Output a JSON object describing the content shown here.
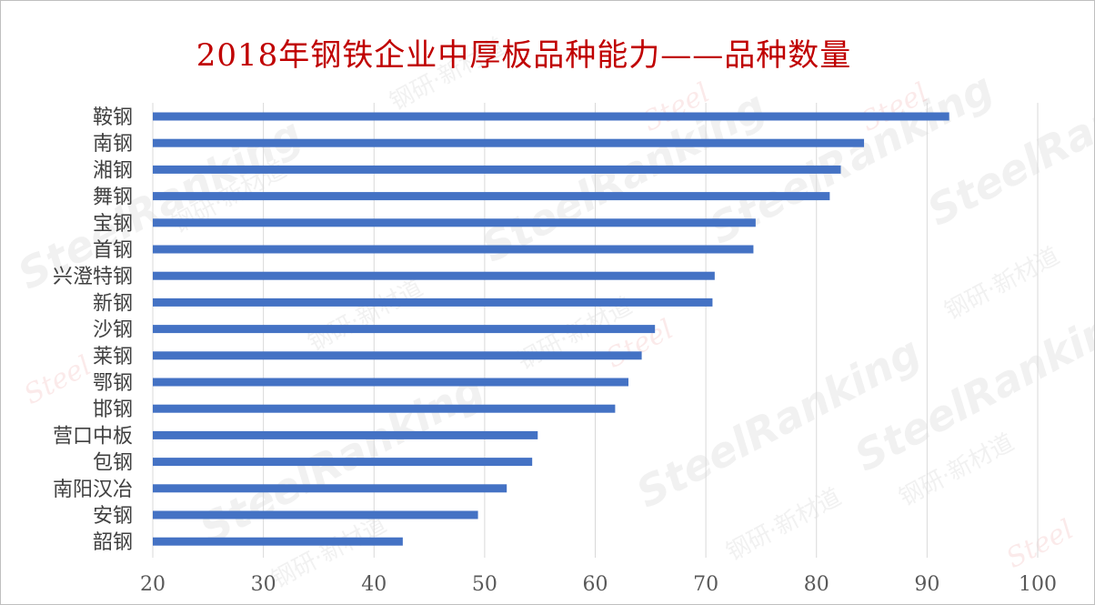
{
  "chart_data": {
    "type": "bar",
    "orientation": "horizontal",
    "title": "2018年钢铁企业中厚板品种能力——品种数量",
    "categories": [
      "鞍钢",
      "南钢",
      "湘钢",
      "舞钢",
      "宝钢",
      "首钢",
      "兴澄特钢",
      "新钢",
      "沙钢",
      "莱钢",
      "鄂钢",
      "邯钢",
      "营口中板",
      "包钢",
      "南阳汉冶",
      "安钢",
      "韶钢"
    ],
    "values": [
      92,
      84.3,
      82.2,
      81.2,
      74.5,
      74.3,
      70.8,
      70.6,
      65.4,
      64.2,
      63,
      61.8,
      54.8,
      54.3,
      52,
      49.4,
      42.6
    ],
    "xlim": [
      20,
      100
    ],
    "xticks": [
      20,
      30,
      40,
      50,
      60,
      70,
      80,
      90,
      100
    ],
    "grid": "vertical",
    "legend": "none",
    "bar_color": "#4472c4"
  },
  "watermark": {
    "brand": "SteelRanking",
    "text": "钢研·新材道",
    "logo": "Steel"
  }
}
